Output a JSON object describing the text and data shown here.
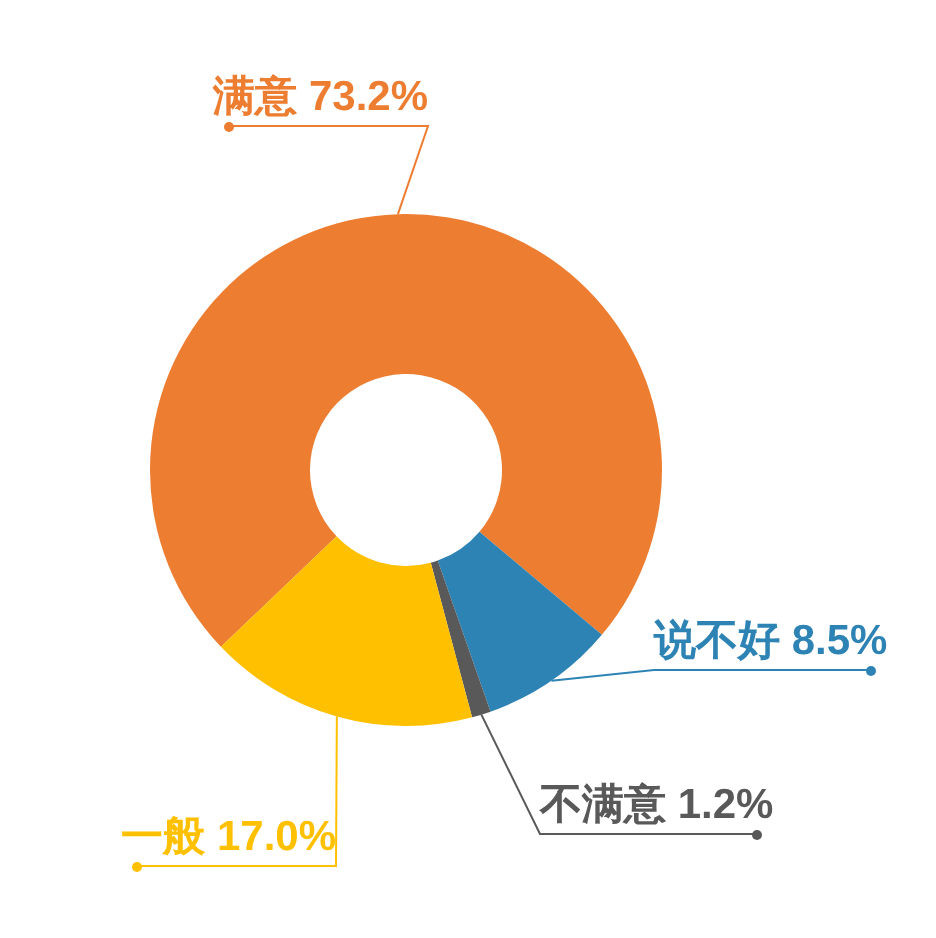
{
  "chart_data": {
    "type": "donut",
    "categories": [
      "满意",
      "说不好",
      "不满意",
      "一般"
    ],
    "values": [
      73.2,
      8.5,
      1.2,
      17.0
    ],
    "colors": [
      "#ed7d31",
      "#2e83b5",
      "#595959",
      "#ffc000"
    ],
    "value_labels": [
      "73.2%",
      "8.5%",
      "1.2%",
      "17.0%"
    ]
  }
}
